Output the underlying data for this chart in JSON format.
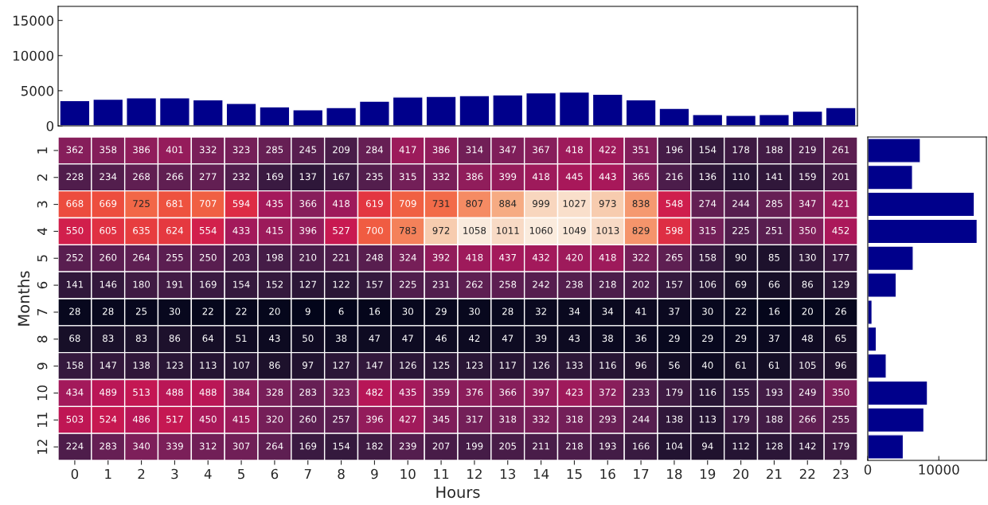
{
  "chart_data": [
    {
      "type": "bar",
      "categories": [
        "0",
        "1",
        "2",
        "3",
        "4",
        "5",
        "6",
        "7",
        "8",
        "9",
        "10",
        "11",
        "12",
        "13",
        "14",
        "15",
        "16",
        "17",
        "18",
        "19",
        "20",
        "21",
        "22",
        "23"
      ],
      "values": [
        3600,
        3800,
        4000,
        4000,
        3700,
        3200,
        2700,
        2300,
        2600,
        3500,
        4100,
        4200,
        4300,
        4400,
        4700,
        4800,
        4500,
        3700,
        2500,
        1600,
        1500,
        1600,
        2100,
        2600
      ],
      "color": "#00008b",
      "ylim": [
        0,
        17000
      ],
      "yticks": [
        0,
        5000,
        10000,
        15000
      ],
      "tick_labels": "y",
      "grid": false
    },
    {
      "type": "heatmap",
      "xlabel": "Hours",
      "ylabel": "Months",
      "categories": [
        "0",
        "1",
        "2",
        "3",
        "4",
        "5",
        "6",
        "7",
        "8",
        "9",
        "10",
        "11",
        "12",
        "13",
        "14",
        "15",
        "16",
        "17",
        "18",
        "19",
        "20",
        "21",
        "22",
        "23"
      ],
      "y_categories": [
        "1",
        "2",
        "3",
        "4",
        "5",
        "6",
        "7",
        "8",
        "9",
        "10",
        "11",
        "12"
      ],
      "cells": [
        [
          362,
          358,
          386,
          401,
          332,
          323,
          285,
          245,
          209,
          284,
          417,
          386,
          314,
          347,
          367,
          418,
          422,
          351,
          196,
          154,
          178,
          188,
          219,
          261
        ],
        [
          228,
          234,
          268,
          266,
          277,
          232,
          169,
          137,
          167,
          235,
          315,
          332,
          386,
          399,
          418,
          445,
          443,
          365,
          216,
          136,
          110,
          141,
          159,
          201
        ],
        [
          668,
          669,
          725,
          681,
          707,
          594,
          435,
          366,
          418,
          619,
          709,
          731,
          807,
          884,
          999,
          1027,
          973,
          838,
          548,
          274,
          244,
          285,
          347,
          421
        ],
        [
          550,
          605,
          635,
          624,
          554,
          433,
          415,
          396,
          527,
          700,
          783,
          972,
          1058,
          1011,
          1060,
          1049,
          1013,
          829,
          598,
          315,
          225,
          251,
          350,
          452
        ],
        [
          252,
          260,
          264,
          255,
          250,
          203,
          198,
          210,
          221,
          248,
          324,
          392,
          418,
          437,
          432,
          420,
          418,
          322,
          265,
          158,
          90,
          85,
          130,
          177
        ],
        [
          141,
          146,
          180,
          191,
          169,
          154,
          152,
          127,
          122,
          157,
          225,
          231,
          262,
          258,
          242,
          238,
          218,
          202,
          157,
          106,
          69,
          66,
          86,
          129
        ],
        [
          28,
          28,
          25,
          30,
          22,
          22,
          20,
          9,
          6,
          16,
          30,
          29,
          30,
          28,
          32,
          34,
          34,
          41,
          37,
          30,
          22,
          16,
          20,
          26
        ],
        [
          68,
          83,
          83,
          86,
          64,
          51,
          43,
          50,
          38,
          47,
          47,
          46,
          42,
          47,
          39,
          43,
          38,
          36,
          29,
          29,
          29,
          37,
          48,
          65
        ],
        [
          158,
          147,
          138,
          123,
          113,
          107,
          86,
          97,
          127,
          147,
          126,
          125,
          123,
          117,
          126,
          133,
          116,
          96,
          56,
          40,
          61,
          61,
          105,
          96
        ],
        [
          434,
          489,
          513,
          488,
          488,
          384,
          328,
          283,
          323,
          482,
          435,
          359,
          376,
          366,
          397,
          423,
          372,
          233,
          179,
          116,
          155,
          193,
          249,
          350
        ],
        [
          503,
          524,
          486,
          517,
          450,
          415,
          320,
          260,
          257,
          396,
          427,
          345,
          317,
          318,
          332,
          318,
          293,
          244,
          138,
          113,
          179,
          188,
          266,
          255
        ],
        [
          224,
          283,
          340,
          339,
          312,
          307,
          264,
          169,
          154,
          182,
          239,
          207,
          199,
          205,
          211,
          218,
          193,
          166,
          104,
          94,
          112,
          128,
          142,
          179
        ]
      ],
      "data_labels": true,
      "grid": false
    },
    {
      "type": "bar",
      "orientation": "horizontal",
      "categories": [
        "1",
        "2",
        "3",
        "4",
        "5",
        "6",
        "7",
        "8",
        "9",
        "10",
        "11",
        "12"
      ],
      "values": [
        7400,
        6300,
        15000,
        15400,
        6400,
        4000,
        600,
        1200,
        2600,
        8400,
        7900,
        5000
      ],
      "color": "#00008b",
      "xlim": [
        0,
        16700
      ],
      "xticks": [
        0,
        10000
      ],
      "tick_labels": "x",
      "grid": false
    }
  ]
}
